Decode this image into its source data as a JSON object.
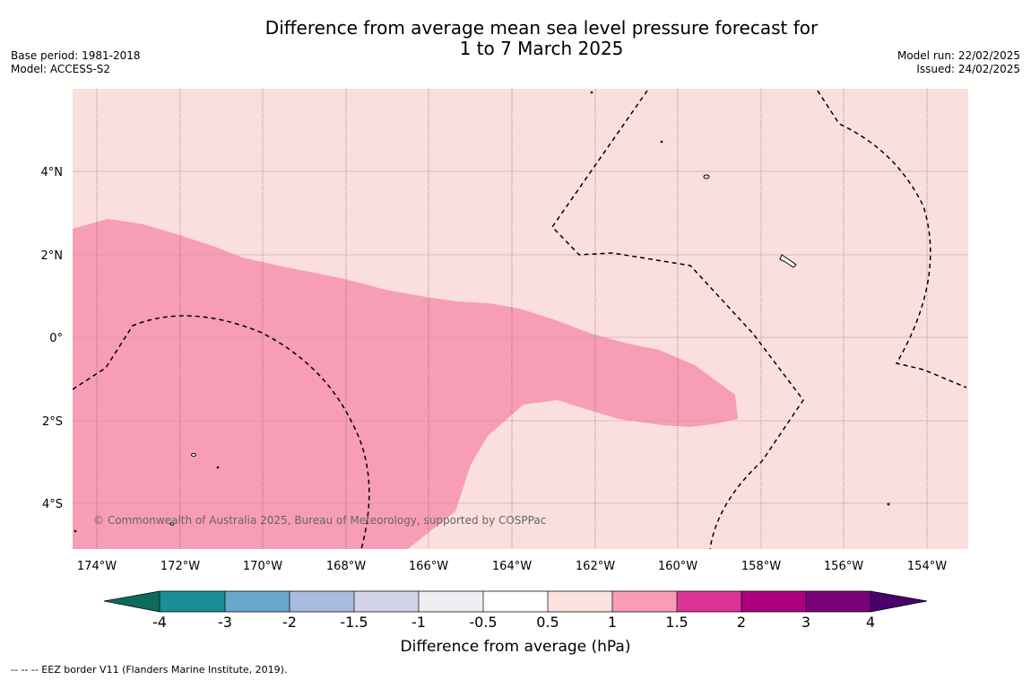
{
  "title": {
    "line1": "Difference from average mean sea level pressure forecast for",
    "line2": "1 to 7 March 2025"
  },
  "meta_left": {
    "base_period": "Base period: 1981-2018",
    "model": "Model: ACCESS-S2"
  },
  "meta_right": {
    "model_run": "Model run: 22/02/2025",
    "issued": "Issued: 24/02/2025"
  },
  "map": {
    "credit": "© Commonwealth of Australia 2025, Bureau of Meteorology, supported by COSPPac",
    "lon_ticks": [
      "174°W",
      "172°W",
      "170°W",
      "168°W",
      "166°W",
      "164°W",
      "162°W",
      "160°W",
      "158°W",
      "156°W",
      "154°W"
    ],
    "lat_ticks": [
      "4°N",
      "2°N",
      "0°",
      "2°S",
      "4°S"
    ],
    "colors": {
      "background_class": "#fbdfdc",
      "positive_band": "#f89db6"
    }
  },
  "colorbar": {
    "label": "Difference from average (hPa)",
    "ticks": [
      "-4",
      "-3",
      "-2",
      "-1.5",
      "-1",
      "-0.5",
      "0.5",
      "1",
      "1.5",
      "2",
      "3",
      "4"
    ],
    "colors": [
      "#0d6b5d",
      "#1b8e96",
      "#69a8cc",
      "#a9bbde",
      "#d2d3e7",
      "#efeef3",
      "#ffffff",
      "#fde2df",
      "#f99db6",
      "#dd3597",
      "#ac017d",
      "#7a0179",
      "#4a006a"
    ]
  },
  "footnote": "--  --  -- EEZ border V11 (Flanders Marine Institute, 2019)."
}
